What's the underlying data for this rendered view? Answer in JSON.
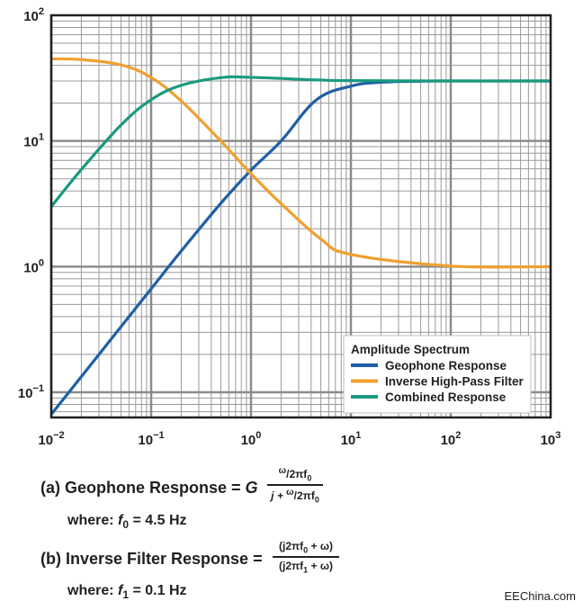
{
  "chart_data": {
    "type": "line",
    "x_scale": "log",
    "y_scale": "log",
    "xlim": [
      0.01,
      1000
    ],
    "ylim": [
      0.063,
      100
    ],
    "grid": true,
    "x_tick_labels": [
      {
        "base": "10",
        "exp": "−2",
        "value": 0.01
      },
      {
        "base": "10",
        "exp": "−1",
        "value": 0.1
      },
      {
        "base": "10",
        "exp": "0",
        "value": 1
      },
      {
        "base": "10",
        "exp": "1",
        "value": 10
      },
      {
        "base": "10",
        "exp": "2",
        "value": 100
      },
      {
        "base": "10",
        "exp": "3",
        "value": 1000
      }
    ],
    "y_tick_labels": [
      {
        "base": "10",
        "exp": "−1",
        "value": 0.1
      },
      {
        "base": "10",
        "exp": "0",
        "value": 1
      },
      {
        "base": "10",
        "exp": "1",
        "value": 10
      },
      {
        "base": "10",
        "exp": "2",
        "value": 100
      }
    ],
    "legend": {
      "title": "Amplitude Spectrum",
      "position": "bottom-right"
    },
    "series": [
      {
        "name": "Geophone Response",
        "color": "#1f5fa6",
        "x": [
          0.01,
          0.02,
          0.05,
          0.1,
          0.2,
          0.5,
          1,
          2,
          4.5,
          10,
          20,
          50,
          100,
          1000
        ],
        "y": [
          0.0667,
          0.133,
          0.333,
          0.666,
          1.33,
          3.2,
          5.85,
          10.0,
          21.2,
          27.3,
          29.3,
          29.9,
          30.0,
          30.0
        ]
      },
      {
        "name": "Inverse High-Pass Filter",
        "color": "#f0a030",
        "x": [
          0.01,
          0.02,
          0.05,
          0.1,
          0.2,
          0.5,
          1,
          2,
          5,
          10,
          100,
          1000
        ],
        "y": [
          45.0,
          44.4,
          40.3,
          32.0,
          20.8,
          9.96,
          5.49,
          3.17,
          1.66,
          1.25,
          1.01,
          1.0
        ]
      },
      {
        "name": "Combined Response",
        "color": "#1a9a7e",
        "x": [
          0.01,
          0.02,
          0.05,
          0.1,
          0.2,
          0.5,
          1,
          4.5,
          10,
          100,
          1000
        ],
        "y": [
          3.0,
          5.92,
          13.4,
          21.3,
          27.7,
          31.9,
          32.1,
          30.6,
          30.2,
          30.0,
          30.0
        ]
      }
    ]
  },
  "equations": {
    "a_label": "(a) Geophone Response = ",
    "a_g": "G",
    "a_num_omega": "ω",
    "a_num_rest": "/2πf",
    "a_num_sub": "0",
    "a_den_j": "j + ",
    "a_den_omega": "ω",
    "a_den_rest": "/2πf",
    "a_den_sub": "0",
    "a_where": "where: ",
    "a_where_var": "f",
    "a_where_sub": "0",
    "a_where_val": " = 4.5 Hz",
    "b_label": "(b) Inverse Filter Response = ",
    "b_num_pre": "(j2πf",
    "b_num_sub": "0",
    "b_num_post": " + ω)",
    "b_den_pre": "(j2πf",
    "b_den_sub": "1",
    "b_den_post": " + ω)",
    "b_where": "where: ",
    "b_where_var": "f",
    "b_where_sub": "1",
    "b_where_val": " = 0.1 Hz"
  },
  "watermark": "EEChina.com"
}
